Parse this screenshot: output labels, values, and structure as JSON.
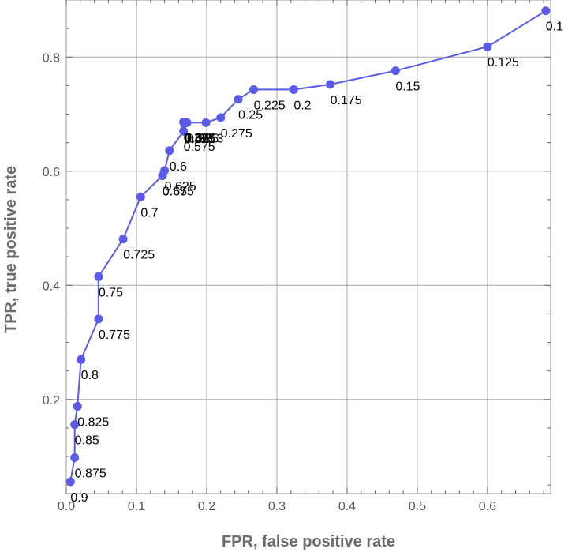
{
  "chart_data": {
    "type": "line",
    "xlabel": "FPR, false positive rate",
    "ylabel": "TPR, true positive rate",
    "xlim": [
      0,
      0.69
    ],
    "ylim": [
      0.035,
      0.9
    ],
    "x_ticks": [
      0.0,
      0.1,
      0.2,
      0.3,
      0.4,
      0.5,
      0.6
    ],
    "x_tick_labels": [
      "0.0",
      "0.1",
      "0.2",
      "0.3",
      "0.4",
      "0.5",
      "0.6"
    ],
    "y_ticks": [
      0.2,
      0.4,
      0.6,
      0.8
    ],
    "y_tick_labels": [
      "0.2",
      "0.4",
      "0.6",
      "0.8"
    ],
    "grid": true,
    "marker": "circle",
    "color": "#5a5be8",
    "series": [
      {
        "points": [
          {
            "x": 0.683,
            "y": 0.881,
            "label": "0.1"
          },
          {
            "x": 0.6,
            "y": 0.818,
            "label": "0.125"
          },
          {
            "x": 0.469,
            "y": 0.776,
            "label": "0.15"
          },
          {
            "x": 0.376,
            "y": 0.752,
            "label": "0.175"
          },
          {
            "x": 0.324,
            "y": 0.743,
            "label": "0.2"
          },
          {
            "x": 0.267,
            "y": 0.743,
            "label": "0.225"
          },
          {
            "x": 0.245,
            "y": 0.726,
            "label": "0.25"
          },
          {
            "x": 0.22,
            "y": 0.694,
            "label": "0.275"
          },
          {
            "x": 0.199,
            "y": 0.685,
            "label": "0.3"
          },
          {
            "x": 0.172,
            "y": 0.685,
            "label": "0.325"
          },
          {
            "x": 0.169,
            "y": 0.686,
            "label": "0.35"
          },
          {
            "x": 0.167,
            "y": 0.686,
            "label": "0.375"
          },
          {
            "x": 0.168,
            "y": 0.684,
            "label": "0.4"
          },
          {
            "x": 0.168,
            "y": 0.684,
            "label": "0.425"
          },
          {
            "x": 0.168,
            "y": 0.684,
            "label": "0.45"
          },
          {
            "x": 0.168,
            "y": 0.684,
            "label": "0.475"
          },
          {
            "x": 0.168,
            "y": 0.684,
            "label": "0.5"
          },
          {
            "x": 0.168,
            "y": 0.684,
            "label": "0.525"
          },
          {
            "x": 0.168,
            "y": 0.684,
            "label": "0.55"
          },
          {
            "x": 0.167,
            "y": 0.67,
            "label": "0.575"
          },
          {
            "x": 0.147,
            "y": 0.636,
            "label": "0.6"
          },
          {
            "x": 0.14,
            "y": 0.601,
            "label": "0.625"
          },
          {
            "x": 0.137,
            "y": 0.592,
            "label": "0.65"
          },
          {
            "x": 0.137,
            "y": 0.592,
            "label": "0.675"
          },
          {
            "x": 0.106,
            "y": 0.555,
            "label": "0.7"
          },
          {
            "x": 0.081,
            "y": 0.481,
            "label": "0.725"
          },
          {
            "x": 0.046,
            "y": 0.415,
            "label": "0.75"
          },
          {
            "x": 0.046,
            "y": 0.341,
            "label": "0.775"
          },
          {
            "x": 0.021,
            "y": 0.27,
            "label": "0.8"
          },
          {
            "x": 0.016,
            "y": 0.188,
            "label": "0.825"
          },
          {
            "x": 0.012,
            "y": 0.156,
            "label": "0.85"
          },
          {
            "x": 0.012,
            "y": 0.098,
            "label": "0.875"
          },
          {
            "x": 0.006,
            "y": 0.056,
            "label": "0.9"
          }
        ]
      }
    ]
  }
}
